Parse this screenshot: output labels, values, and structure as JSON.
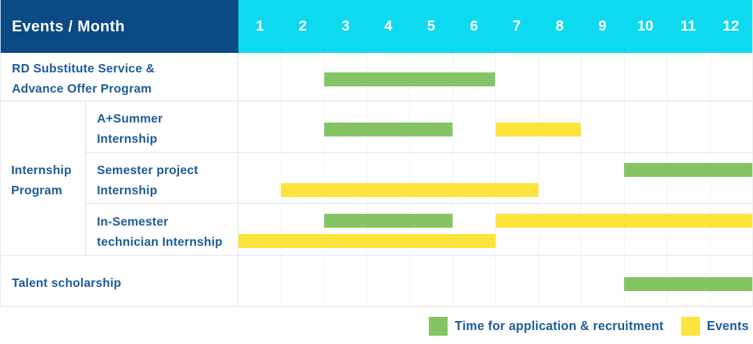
{
  "colors": {
    "navy": "#0b4a85",
    "cyan": "#0edaef",
    "green": "#85c464",
    "yellow": "#fce33d",
    "text_blue": "#1e5c97"
  },
  "header": {
    "label": "Events / Month",
    "months": [
      "1",
      "2",
      "3",
      "4",
      "5",
      "6",
      "7",
      "8",
      "9",
      "10",
      "11",
      "12"
    ]
  },
  "rows": {
    "rd": {
      "label": "RD Substitute Service &\nAdvance Offer Program"
    },
    "internship_group": {
      "label": "Internship\nProgram"
    },
    "a_summer": {
      "label": "A+Summer\nInternship"
    },
    "semester_project": {
      "label": "Semester project\nInternship"
    },
    "in_semester": {
      "label": "In-Semester\ntechnician Internship"
    },
    "talent": {
      "label": "Talent scholarship"
    }
  },
  "legend": [
    {
      "key": "green",
      "color": "#85c464",
      "label": "Time for application & recruitment"
    },
    {
      "key": "yellow",
      "color": "#fce33d",
      "label": "Events"
    }
  ],
  "chart_data": {
    "type": "gantt",
    "x_axis_label": "Month",
    "x_ticks": [
      1,
      2,
      3,
      4,
      5,
      6,
      7,
      8,
      9,
      10,
      11,
      12
    ],
    "x_range": [
      1,
      12
    ],
    "legend": {
      "green": "Time for application & recruitment",
      "yellow": "Events"
    },
    "tasks": [
      {
        "id": "rd",
        "group": "",
        "label": "RD Substitute Service & Advance Offer Program",
        "bars": [
          {
            "kind": "application_recruitment",
            "color": "green",
            "start_month": 3,
            "end_month": 6,
            "lane": "single"
          }
        ]
      },
      {
        "id": "a_summer",
        "group": "Internship Program",
        "label": "A+Summer Internship",
        "bars": [
          {
            "kind": "application_recruitment",
            "color": "green",
            "start_month": 3,
            "end_month": 5,
            "lane": "single"
          },
          {
            "kind": "event",
            "color": "yellow",
            "start_month": 7,
            "end_month": 8,
            "lane": "single"
          }
        ]
      },
      {
        "id": "semester_project",
        "group": "Internship Program",
        "label": "Semester project Internship",
        "bars": [
          {
            "kind": "application_recruitment",
            "color": "green",
            "start_month": 10,
            "end_month": 12,
            "lane": "upper"
          },
          {
            "kind": "event",
            "color": "yellow",
            "start_month": 2,
            "end_month": 7,
            "lane": "lower"
          }
        ]
      },
      {
        "id": "in_semester",
        "group": "Internship Program",
        "label": "In-Semester technician Internship",
        "bars": [
          {
            "kind": "application_recruitment",
            "color": "green",
            "start_month": 3,
            "end_month": 5,
            "lane": "upper"
          },
          {
            "kind": "event",
            "color": "yellow",
            "start_month": 7,
            "end_month": 12,
            "lane": "upper"
          },
          {
            "kind": "event",
            "color": "yellow",
            "start_month": 1,
            "end_month": 6,
            "lane": "lower"
          }
        ]
      },
      {
        "id": "talent",
        "group": "",
        "label": "Talent scholarship",
        "bars": [
          {
            "kind": "application_recruitment",
            "color": "green",
            "start_month": 10,
            "end_month": 12,
            "lane": "single"
          }
        ]
      }
    ]
  }
}
